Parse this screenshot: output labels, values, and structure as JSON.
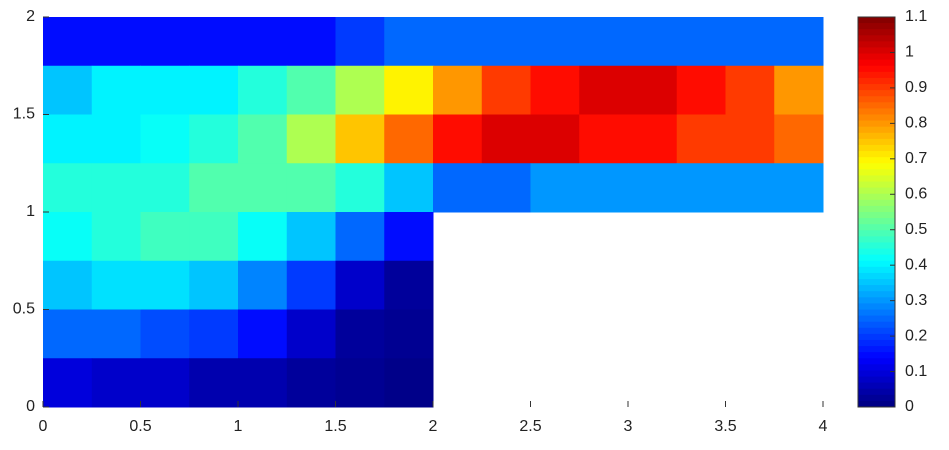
{
  "chart_data": {
    "type": "contourf",
    "x": [
      0.125,
      0.375,
      0.625,
      0.875,
      1.125,
      1.375,
      1.625,
      1.875,
      2.125,
      2.375,
      2.625,
      2.875,
      3.125,
      3.375,
      3.625,
      3.875
    ],
    "y": [
      1.875,
      1.625,
      1.375,
      1.125,
      0.875,
      0.625,
      0.375,
      0.125
    ],
    "z": [
      [
        0.15,
        0.15,
        0.15,
        0.15,
        0.15,
        0.15,
        0.2,
        0.25,
        0.25,
        0.25,
        0.25,
        0.25,
        0.25,
        0.25,
        0.25,
        0.25
      ],
      [
        0.35,
        0.4,
        0.4,
        0.4,
        0.45,
        0.5,
        0.6,
        0.7,
        0.8,
        0.9,
        0.95,
        1.0,
        1.0,
        0.95,
        0.9,
        0.8
      ],
      [
        0.4,
        0.4,
        0.42,
        0.45,
        0.5,
        0.6,
        0.75,
        0.85,
        0.95,
        1.0,
        1.0,
        0.95,
        0.95,
        0.9,
        0.9,
        0.85
      ],
      [
        0.45,
        0.45,
        0.45,
        0.5,
        0.5,
        0.5,
        0.45,
        0.35,
        0.25,
        0.25,
        0.3,
        0.3,
        0.3,
        0.3,
        0.3,
        0.3
      ],
      [
        0.42,
        0.45,
        0.48,
        0.48,
        0.42,
        0.35,
        0.25,
        0.15,
        null,
        null,
        null,
        null,
        null,
        null,
        null,
        null
      ],
      [
        0.35,
        0.38,
        0.38,
        0.35,
        0.28,
        0.2,
        0.08,
        0.03,
        null,
        null,
        null,
        null,
        null,
        null,
        null,
        null
      ],
      [
        0.25,
        0.25,
        0.22,
        0.2,
        0.15,
        0.08,
        0.03,
        0.02,
        null,
        null,
        null,
        null,
        null,
        null,
        null,
        null
      ],
      [
        0.1,
        0.08,
        0.08,
        0.05,
        0.05,
        0.03,
        0.02,
        0.01,
        null,
        null,
        null,
        null,
        null,
        null,
        null,
        null
      ]
    ],
    "xlim": [
      0,
      4
    ],
    "ylim": [
      0,
      2
    ],
    "xticks": [
      0,
      0.5,
      1,
      1.5,
      2,
      2.5,
      3,
      3.5,
      4
    ],
    "yticks": [
      0,
      0.5,
      1,
      1.5,
      2
    ],
    "colormap": "jet",
    "clim": [
      0,
      1.1
    ],
    "cticks": [
      0,
      0.1,
      0.2,
      0.3,
      0.4,
      0.5,
      0.6,
      0.7,
      0.8,
      0.9,
      1,
      1.1
    ]
  }
}
